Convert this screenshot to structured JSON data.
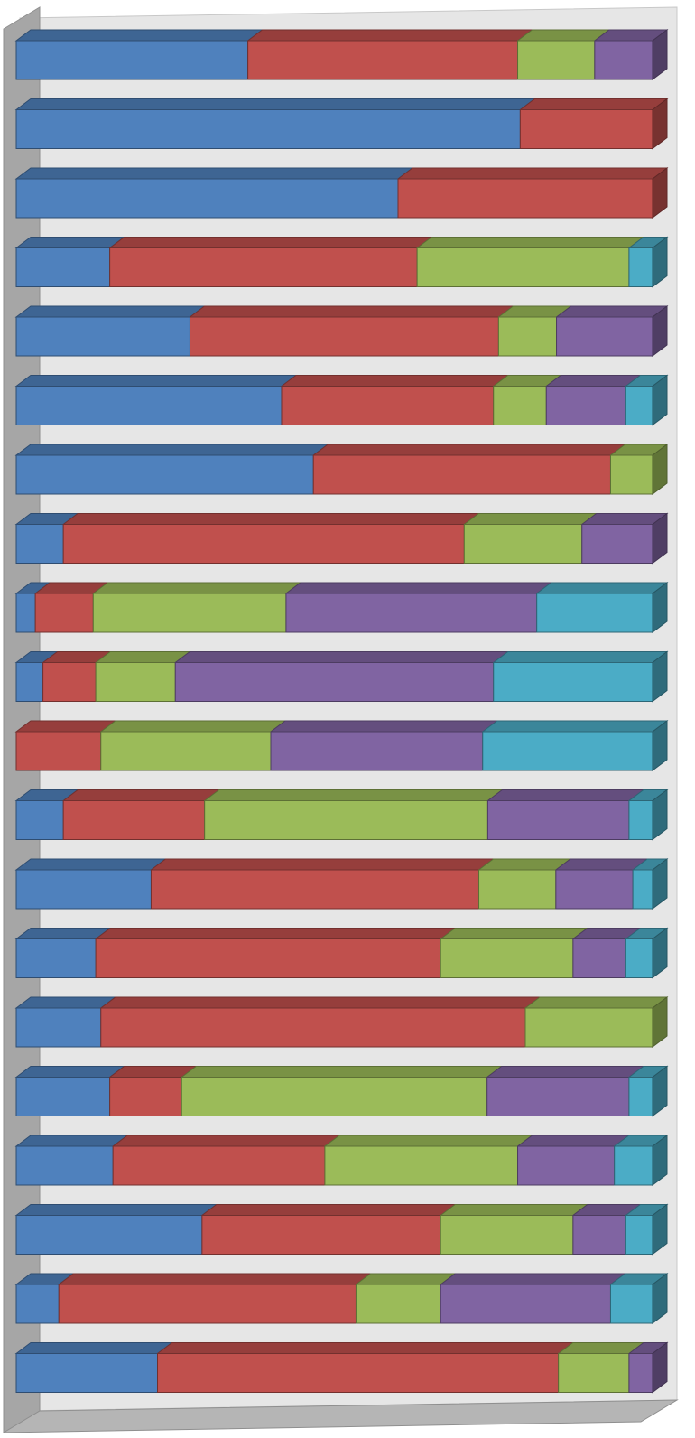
{
  "chart_data": {
    "type": "bar",
    "orientation": "horizontal",
    "stacking": "percent",
    "style": "3d",
    "title": "",
    "xlabel": "",
    "ylabel": "",
    "legend": "none",
    "grid": false,
    "xlim": [
      0,
      100
    ],
    "colors": {
      "series1": "#4F81BD",
      "series2": "#C0504D",
      "series3": "#9BBB59",
      "series4": "#8064A2",
      "series5": "#4BACC6",
      "wall": "#E6E6E6",
      "side_wall": "#A6A6A6"
    },
    "series": [
      {
        "values": [
          36.4,
          42.4,
          12.1,
          9.1,
          0
        ]
      },
      {
        "values": [
          79.2,
          20.8,
          0,
          0,
          0
        ]
      },
      {
        "values": [
          60.0,
          40.0,
          0,
          0,
          0
        ]
      },
      {
        "values": [
          14.7,
          48.3,
          33.3,
          0,
          3.7
        ]
      },
      {
        "values": [
          27.3,
          48.5,
          9.1,
          15.1,
          0
        ]
      },
      {
        "values": [
          41.7,
          33.3,
          8.3,
          12.5,
          4.2
        ]
      },
      {
        "values": [
          46.7,
          46.7,
          6.6,
          0,
          0
        ]
      },
      {
        "values": [
          7.4,
          63.0,
          18.5,
          11.1,
          0
        ]
      },
      {
        "values": [
          3.0,
          9.1,
          30.3,
          39.4,
          18.2
        ]
      },
      {
        "values": [
          4.2,
          8.3,
          12.5,
          50.0,
          25.0
        ]
      },
      {
        "values": [
          0,
          13.3,
          26.7,
          33.3,
          26.7
        ]
      },
      {
        "values": [
          7.4,
          22.2,
          44.5,
          22.2,
          3.7
        ]
      },
      {
        "values": [
          21.2,
          51.5,
          12.1,
          12.1,
          3.1
        ]
      },
      {
        "values": [
          12.5,
          54.2,
          20.8,
          8.3,
          4.2
        ]
      },
      {
        "values": [
          13.3,
          66.7,
          20.0,
          0,
          0
        ]
      },
      {
        "values": [
          14.7,
          11.3,
          48.0,
          22.3,
          3.7
        ]
      },
      {
        "values": [
          15.2,
          33.3,
          30.3,
          15.2,
          6.0
        ]
      },
      {
        "values": [
          29.2,
          37.5,
          20.8,
          8.3,
          4.2
        ]
      },
      {
        "values": [
          6.7,
          46.7,
          13.3,
          26.7,
          6.6
        ]
      },
      {
        "values": [
          22.2,
          63.0,
          11.1,
          3.7,
          0
        ]
      }
    ]
  }
}
